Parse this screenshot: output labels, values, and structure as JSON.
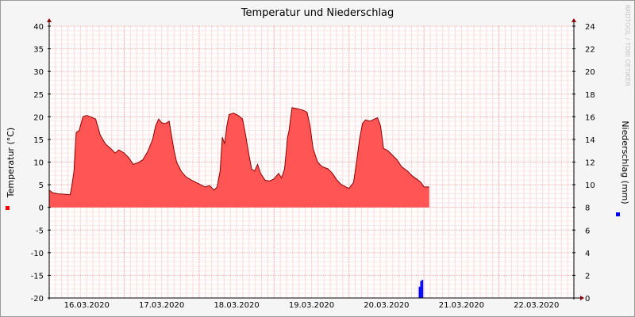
{
  "chart_data": {
    "type": "area",
    "title": "Temperatur und Niederschlag",
    "ylabel_left": "Temperatur (°C)",
    "ylabel_right": "Niederschlag (mm)",
    "watermark": "RRDTOOL / TOBI OETIKER",
    "ylim_left": [
      -20,
      40
    ],
    "ylim_right": [
      0,
      24
    ],
    "yticks_left": [
      40,
      35,
      30,
      25,
      20,
      15,
      10,
      5,
      0,
      -5,
      -10,
      -15,
      -20
    ],
    "yticks_right": [
      24,
      22,
      20,
      18,
      16,
      14,
      12,
      10,
      8,
      6,
      4,
      2,
      0
    ],
    "xlim_days": [
      0,
      7.0
    ],
    "xticks": [
      {
        "day": 0.5,
        "label": "16.03.2020"
      },
      {
        "day": 1.5,
        "label": "17.03.2020"
      },
      {
        "day": 2.5,
        "label": "18.03.2020"
      },
      {
        "day": 3.5,
        "label": "19.03.2020"
      },
      {
        "day": 4.5,
        "label": "20.03.2020"
      },
      {
        "day": 5.5,
        "label": "21.03.2020"
      },
      {
        "day": 6.5,
        "label": "22.03.2020"
      }
    ],
    "grid": true,
    "series": [
      {
        "name": "Temperatur",
        "axis": "left",
        "color": "#ff5555",
        "line_color": "#8b0000",
        "points": [
          [
            0.0,
            3.8
          ],
          [
            0.05,
            3.2
          ],
          [
            0.12,
            3.0
          ],
          [
            0.2,
            2.9
          ],
          [
            0.28,
            2.8
          ],
          [
            0.3,
            4.5
          ],
          [
            0.33,
            8.0
          ],
          [
            0.36,
            16.5
          ],
          [
            0.4,
            17.0
          ],
          [
            0.45,
            20.0
          ],
          [
            0.5,
            20.3
          ],
          [
            0.55,
            20.0
          ],
          [
            0.62,
            19.5
          ],
          [
            0.68,
            16.0
          ],
          [
            0.75,
            14.0
          ],
          [
            0.82,
            13.0
          ],
          [
            0.88,
            12.0
          ],
          [
            0.93,
            12.7
          ],
          [
            1.0,
            12.0
          ],
          [
            1.06,
            11.0
          ],
          [
            1.12,
            9.5
          ],
          [
            1.18,
            9.8
          ],
          [
            1.25,
            10.5
          ],
          [
            1.32,
            12.5
          ],
          [
            1.38,
            15.0
          ],
          [
            1.42,
            18.0
          ],
          [
            1.46,
            19.5
          ],
          [
            1.5,
            18.7
          ],
          [
            1.55,
            18.5
          ],
          [
            1.6,
            19.0
          ],
          [
            1.62,
            17.0
          ],
          [
            1.66,
            13.0
          ],
          [
            1.7,
            10.0
          ],
          [
            1.76,
            8.0
          ],
          [
            1.82,
            6.8
          ],
          [
            1.9,
            6.0
          ],
          [
            1.96,
            5.5
          ],
          [
            2.02,
            5.0
          ],
          [
            2.08,
            4.5
          ],
          [
            2.14,
            4.8
          ],
          [
            2.2,
            3.8
          ],
          [
            2.24,
            4.5
          ],
          [
            2.28,
            8.0
          ],
          [
            2.31,
            15.5
          ],
          [
            2.34,
            14.0
          ],
          [
            2.37,
            18.0
          ],
          [
            2.4,
            20.5
          ],
          [
            2.46,
            20.8
          ],
          [
            2.52,
            20.3
          ],
          [
            2.58,
            19.5
          ],
          [
            2.62,
            16.0
          ],
          [
            2.66,
            12.0
          ],
          [
            2.7,
            8.5
          ],
          [
            2.74,
            8.0
          ],
          [
            2.78,
            9.5
          ],
          [
            2.82,
            7.5
          ],
          [
            2.88,
            6.0
          ],
          [
            2.94,
            5.8
          ],
          [
            3.0,
            6.3
          ],
          [
            3.06,
            7.5
          ],
          [
            3.1,
            6.5
          ],
          [
            3.14,
            8.5
          ],
          [
            3.18,
            15.5
          ],
          [
            3.2,
            17.0
          ],
          [
            3.24,
            22.0
          ],
          [
            3.3,
            21.8
          ],
          [
            3.38,
            21.5
          ],
          [
            3.44,
            21.0
          ],
          [
            3.48,
            18.0
          ],
          [
            3.52,
            13.0
          ],
          [
            3.58,
            10.0
          ],
          [
            3.64,
            9.0
          ],
          [
            3.72,
            8.5
          ],
          [
            3.78,
            7.5
          ],
          [
            3.84,
            6.0
          ],
          [
            3.9,
            5.0
          ],
          [
            3.96,
            4.5
          ],
          [
            4.0,
            4.2
          ],
          [
            4.06,
            5.5
          ],
          [
            4.1,
            10.0
          ],
          [
            4.14,
            15.0
          ],
          [
            4.18,
            18.5
          ],
          [
            4.22,
            19.3
          ],
          [
            4.28,
            19.0
          ],
          [
            4.34,
            19.5
          ],
          [
            4.38,
            19.8
          ],
          [
            4.42,
            18.0
          ],
          [
            4.46,
            13.0
          ],
          [
            4.52,
            12.5
          ],
          [
            4.58,
            11.5
          ],
          [
            4.64,
            10.5
          ],
          [
            4.7,
            9.0
          ],
          [
            4.78,
            8.0
          ],
          [
            4.84,
            7.0
          ],
          [
            4.9,
            6.3
          ],
          [
            4.96,
            5.5
          ],
          [
            5.0,
            4.5
          ],
          [
            5.07,
            4.5
          ]
        ]
      },
      {
        "name": "Niederschlag",
        "axis": "right",
        "color": "#0000ff",
        "bars": [
          {
            "x0": 4.93,
            "x1": 4.95,
            "value": 1.0
          },
          {
            "x0": 4.95,
            "x1": 4.97,
            "value": 1.5
          },
          {
            "x0": 4.97,
            "x1": 4.99,
            "value": 1.6
          }
        ]
      }
    ]
  }
}
